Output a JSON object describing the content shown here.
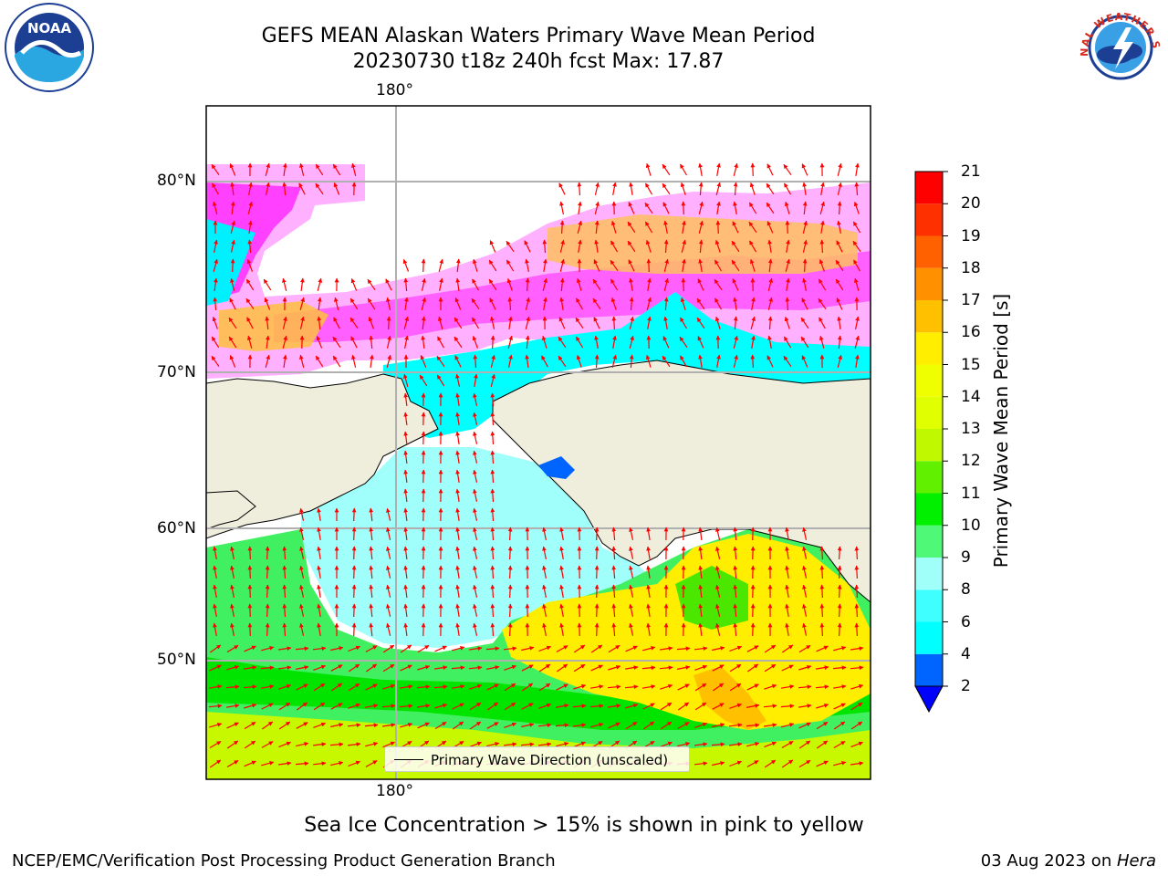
{
  "header": {
    "title_line1": "GEFS MEAN Alaskan Waters Primary Wave Mean Period",
    "title_line2": "20230730 t18z 240h fcst   Max: 17.87"
  },
  "logos": {
    "noaa_text": "NOAA",
    "nws_text": "NATIONAL WEATHER SERVICE"
  },
  "map": {
    "longitude_labels": [
      "180°",
      "180°"
    ],
    "latitude_labels": [
      "80°N",
      "70°N",
      "60°N",
      "50°N"
    ],
    "legend_label": "Primary Wave Direction (unscaled)",
    "colors": {
      "land": "#efeddc",
      "open_water_white": "#ffffff",
      "arrow": "#ff0000",
      "gridline": "#b0b0b0"
    }
  },
  "colorbar": {
    "label": "Primary Wave Mean Period [s]",
    "ticks": [
      "21",
      "20",
      "19",
      "18",
      "17",
      "16",
      "15",
      "14",
      "13",
      "12",
      "11",
      "10",
      "9",
      "8",
      "6",
      "4",
      "2"
    ],
    "bands_bottom_to_top": [
      {
        "from": 2,
        "to": 4,
        "color": "#0064ff"
      },
      {
        "from": 4,
        "to": 6,
        "color": "#00ffff"
      },
      {
        "from": 6,
        "to": 8,
        "color": "#40ffff"
      },
      {
        "from": 8,
        "to": 9,
        "color": "#a0fff8"
      },
      {
        "from": 9,
        "to": 10,
        "color": "#50f878"
      },
      {
        "from": 10,
        "to": 11,
        "color": "#00f000"
      },
      {
        "from": 11,
        "to": 12,
        "color": "#60f000"
      },
      {
        "from": 12,
        "to": 13,
        "color": "#c0f800"
      },
      {
        "from": 13,
        "to": 14,
        "color": "#e0ff00"
      },
      {
        "from": 14,
        "to": 15,
        "color": "#f0ff00"
      },
      {
        "from": 15,
        "to": 16,
        "color": "#ffee00"
      },
      {
        "from": 16,
        "to": 17,
        "color": "#ffc000"
      },
      {
        "from": 17,
        "to": 18,
        "color": "#ff9000"
      },
      {
        "from": 18,
        "to": 19,
        "color": "#ff6000"
      },
      {
        "from": 19,
        "to": 20,
        "color": "#ff3000"
      },
      {
        "from": 20,
        "to": 21,
        "color": "#ff0000"
      }
    ],
    "under_color": "#0000ff"
  },
  "footer": {
    "ice_note": "Sea Ice Concentration > 15% is shown in pink to yellow",
    "left": "NCEP/EMC/Verification Post Processing Product Generation Branch",
    "date": "03 Aug 2023 on ",
    "machine": "Hera"
  }
}
